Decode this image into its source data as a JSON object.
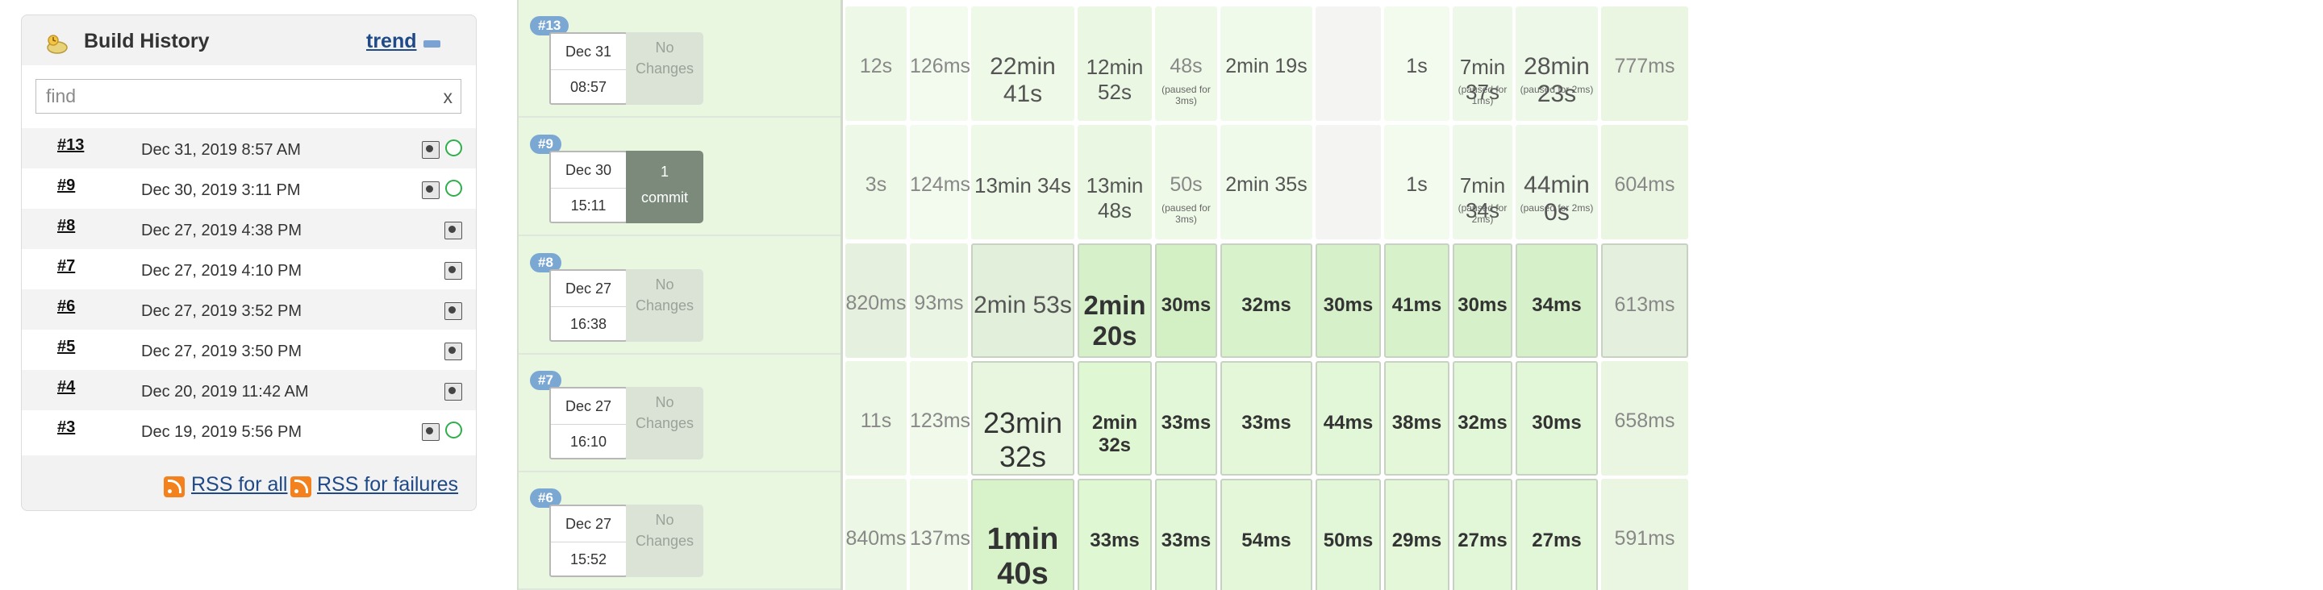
{
  "build_history": {
    "title": "Build History",
    "trend_label": "trend",
    "search_placeholder": "find",
    "search_clear": "x",
    "rss_all": "RSS for all",
    "rss_failures": "RSS for failures",
    "builds": [
      {
        "number": "#13",
        "date": "Dec 31, 2019 8:57 AM",
        "status_icon": true
      },
      {
        "number": "#9",
        "date": "Dec 30, 2019 3:11 PM",
        "status_icon": true
      },
      {
        "number": "#8",
        "date": "Dec 27, 2019 4:38 PM",
        "status_icon": false
      },
      {
        "number": "#7",
        "date": "Dec 27, 2019 4:10 PM",
        "status_icon": false
      },
      {
        "number": "#6",
        "date": "Dec 27, 2019 3:52 PM",
        "status_icon": false
      },
      {
        "number": "#5",
        "date": "Dec 27, 2019 3:50 PM",
        "status_icon": false
      },
      {
        "number": "#4",
        "date": "Dec 20, 2019 11:42 AM",
        "status_icon": false
      },
      {
        "number": "#3",
        "date": "Dec 19, 2019 5:56 PM",
        "status_icon": true
      }
    ]
  },
  "stage_view": {
    "rows": [
      {
        "build": "#13",
        "day": "Dec 31",
        "time": "08:57",
        "changes_line1": "No",
        "changes_line2": "Changes",
        "cells": [
          {
            "text": "12s"
          },
          {
            "text": "126ms"
          },
          {
            "text": "22min 41s"
          },
          {
            "text": "12min 52s"
          },
          {
            "text": "48s",
            "paused": "(paused for 3ms)"
          },
          {
            "text": "2min 19s"
          },
          {
            "text": ""
          },
          {
            "text": "1s"
          },
          {
            "text": "7min 37s",
            "paused": "(paused for 1ms)"
          },
          {
            "text": "28min 23s",
            "paused": "(paused for 2ms)"
          },
          {
            "text": "777ms"
          }
        ]
      },
      {
        "build": "#9",
        "day": "Dec 30",
        "time": "15:11",
        "changes_line1": "1",
        "changes_line2": "commit",
        "cells": [
          {
            "text": "3s"
          },
          {
            "text": "124ms"
          },
          {
            "text": "13min 34s"
          },
          {
            "text": "13min 48s"
          },
          {
            "text": "50s",
            "paused": "(paused for 3ms)"
          },
          {
            "text": "2min 35s"
          },
          {
            "text": ""
          },
          {
            "text": "1s"
          },
          {
            "text": "7min 34s",
            "paused": "(paused for 2ms)"
          },
          {
            "text": "44min 0s",
            "paused": "(paused for 2ms)"
          },
          {
            "text": "604ms"
          }
        ]
      },
      {
        "build": "#8",
        "day": "Dec 27",
        "time": "16:38",
        "changes_line1": "No",
        "changes_line2": "Changes",
        "cells": [
          {
            "text": "820ms"
          },
          {
            "text": "93ms"
          },
          {
            "text": "2min 53s"
          },
          {
            "text": "2min 20s"
          },
          {
            "text": "30ms"
          },
          {
            "text": "32ms"
          },
          {
            "text": "30ms"
          },
          {
            "text": "41ms"
          },
          {
            "text": "30ms"
          },
          {
            "text": "34ms"
          },
          {
            "text": "613ms"
          }
        ]
      },
      {
        "build": "#7",
        "day": "Dec 27",
        "time": "16:10",
        "changes_line1": "No",
        "changes_line2": "Changes",
        "cells": [
          {
            "text": "11s"
          },
          {
            "text": "123ms"
          },
          {
            "text": "23min 32s"
          },
          {
            "text": "2min 32s"
          },
          {
            "text": "33ms"
          },
          {
            "text": "33ms"
          },
          {
            "text": "44ms"
          },
          {
            "text": "38ms"
          },
          {
            "text": "32ms"
          },
          {
            "text": "30ms"
          },
          {
            "text": "658ms"
          }
        ]
      },
      {
        "build": "#6",
        "day": "Dec 27",
        "time": "15:52",
        "changes_line1": "No",
        "changes_line2": "Changes",
        "cells": [
          {
            "text": "840ms"
          },
          {
            "text": "137ms"
          },
          {
            "text": "1min 40s"
          },
          {
            "text": "33ms"
          },
          {
            "text": "33ms"
          },
          {
            "text": "54ms"
          },
          {
            "text": "50ms"
          },
          {
            "text": "29ms"
          },
          {
            "text": "27ms"
          },
          {
            "text": "27ms"
          },
          {
            "text": "591ms"
          }
        ]
      }
    ]
  },
  "colors": {
    "link": "#204a87",
    "success_circle": "#2eaf4a",
    "stage_pass": "#e9f7e1",
    "build_pill": "#7ba7d3",
    "rss": "#f3821e"
  }
}
